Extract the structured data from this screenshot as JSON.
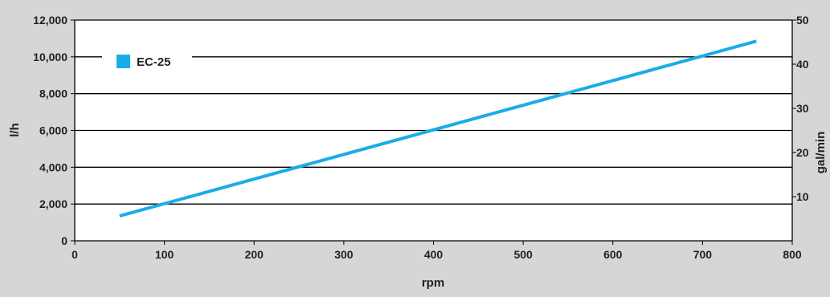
{
  "chart_data": {
    "type": "line",
    "xlabel": "rpm",
    "ylabel": "l/h",
    "ylabel_right": "gal/min",
    "xlim": [
      0,
      800
    ],
    "ylim": [
      0,
      12000
    ],
    "ylim_right": [
      0,
      50
    ],
    "x_ticks": [
      "0",
      "100",
      "200",
      "300",
      "400",
      "500",
      "600",
      "700",
      "800"
    ],
    "y_ticks": [
      "0",
      "2,000",
      "4,000",
      "6,000",
      "8,000",
      "10,000",
      "12,000"
    ],
    "y_ticks_right": [
      "10",
      "20",
      "30",
      "40",
      "50"
    ],
    "grid": "horizontal",
    "legend_position": "top-left",
    "series": [
      {
        "name": "EC-25",
        "color": "#1aace8",
        "x": [
          50,
          760
        ],
        "y": [
          1350,
          10850
        ]
      }
    ]
  },
  "colors": {
    "background": "#d6d6d6",
    "plot": "#ffffff",
    "grid": "#000000"
  }
}
